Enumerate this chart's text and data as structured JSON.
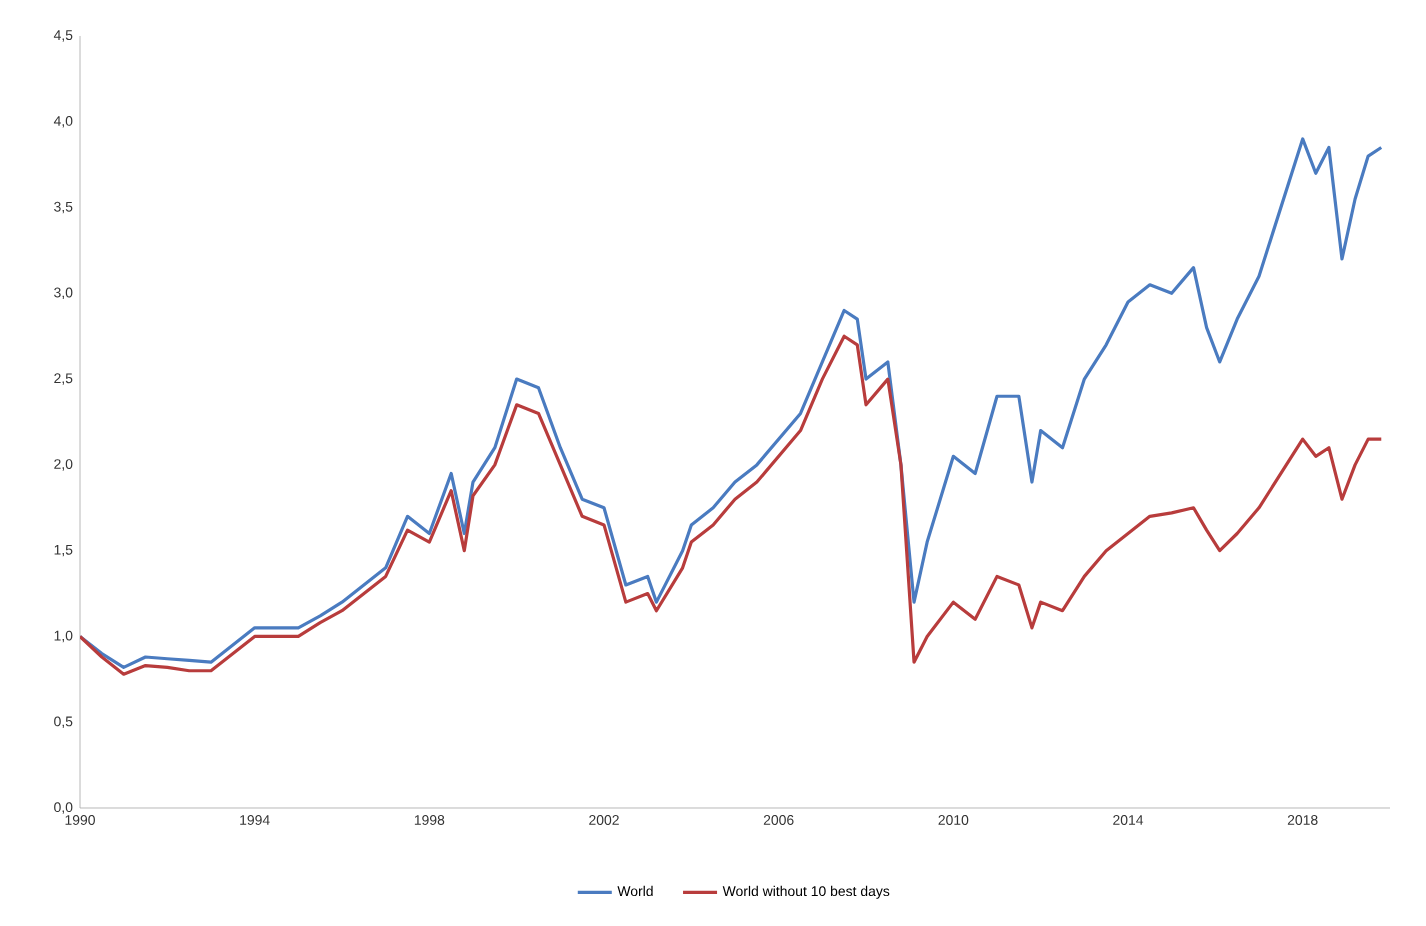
{
  "chart_data": {
    "type": "line",
    "xlim": [
      1990,
      2020
    ],
    "xticks": [
      1990,
      1994,
      1998,
      2002,
      2006,
      2010,
      2014,
      2018
    ],
    "ylim": [
      0,
      4.5
    ],
    "yticks": [
      {
        "value": 0,
        "label": "0,0"
      },
      {
        "value": 0.5,
        "label": "0,5"
      },
      {
        "value": 1,
        "label": "1,0"
      },
      {
        "value": 1.5,
        "label": "1,5"
      },
      {
        "value": 2,
        "label": "2,0"
      },
      {
        "value": 2.5,
        "label": "2,5"
      },
      {
        "value": 3,
        "label": "3,0"
      },
      {
        "value": 3.5,
        "label": "3,5"
      },
      {
        "value": 4,
        "label": "4,0"
      },
      {
        "value": 4.5,
        "label": "4,5"
      }
    ],
    "x": [
      1990,
      1990.5,
      1991,
      1991.5,
      1992,
      1992.5,
      1993,
      1993.5,
      1994,
      1995,
      1995.5,
      1996,
      1996.5,
      1997,
      1997.5,
      1998,
      1998.5,
      1998.8,
      1999,
      1999.5,
      2000,
      2000.5,
      2001,
      2001.5,
      2002,
      2002.5,
      2003,
      2003.2,
      2003.8,
      2004,
      2004.5,
      2005,
      2005.5,
      2006,
      2006.5,
      2007,
      2007.5,
      2007.8,
      2008,
      2008.5,
      2008.8,
      2009.1,
      2009.4,
      2010,
      2010.5,
      2011,
      2011.5,
      2011.8,
      2012,
      2012.5,
      2013,
      2013.5,
      2014,
      2014.5,
      2015,
      2015.5,
      2015.8,
      2016.1,
      2016.5,
      2017,
      2017.5,
      2018,
      2018.3,
      2018.6,
      2018.9,
      2019.2,
      2019.5,
      2019.8
    ],
    "series": [
      {
        "name": "World",
        "color": "#4a7bc0",
        "values": [
          1.0,
          0.9,
          0.82,
          0.88,
          0.87,
          0.86,
          0.85,
          0.95,
          1.05,
          1.05,
          1.12,
          1.2,
          1.3,
          1.4,
          1.7,
          1.6,
          1.95,
          1.6,
          1.9,
          2.1,
          2.5,
          2.45,
          2.1,
          1.8,
          1.75,
          1.3,
          1.35,
          1.2,
          1.5,
          1.65,
          1.75,
          1.9,
          2.0,
          2.15,
          2.3,
          2.6,
          2.9,
          2.85,
          2.5,
          2.6,
          2.0,
          1.2,
          1.55,
          2.05,
          1.95,
          2.4,
          2.4,
          1.9,
          2.2,
          2.1,
          2.5,
          2.7,
          2.95,
          3.05,
          3.0,
          3.15,
          2.8,
          2.6,
          2.85,
          3.1,
          3.5,
          3.9,
          3.7,
          3.85,
          3.2,
          3.55,
          3.8,
          3.85
        ]
      },
      {
        "name": "World without 10 best days",
        "color": "#b83c3c",
        "values": [
          1.0,
          0.88,
          0.78,
          0.83,
          0.82,
          0.8,
          0.8,
          0.9,
          1.0,
          1.0,
          1.08,
          1.15,
          1.25,
          1.35,
          1.62,
          1.55,
          1.85,
          1.5,
          1.82,
          2.0,
          2.35,
          2.3,
          2.0,
          1.7,
          1.65,
          1.2,
          1.25,
          1.15,
          1.4,
          1.55,
          1.65,
          1.8,
          1.9,
          2.05,
          2.2,
          2.5,
          2.75,
          2.7,
          2.35,
          2.5,
          2.0,
          0.85,
          1.0,
          1.2,
          1.1,
          1.35,
          1.3,
          1.05,
          1.2,
          1.15,
          1.35,
          1.5,
          1.6,
          1.7,
          1.72,
          1.75,
          1.62,
          1.5,
          1.6,
          1.75,
          1.95,
          2.15,
          2.05,
          2.1,
          1.8,
          2.0,
          2.15,
          2.15
        ]
      }
    ],
    "legend": "bottom",
    "grid": false,
    "marker": "none",
    "line_style": "solid"
  }
}
